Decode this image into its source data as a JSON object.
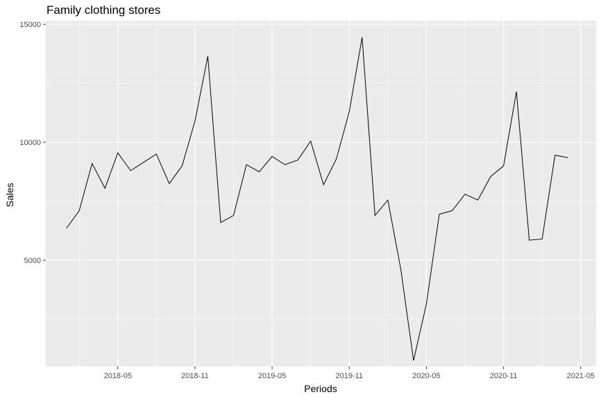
{
  "chart_data": {
    "type": "line",
    "title": "Family clothing stores",
    "xlabel": "Periods",
    "ylabel": "Sales",
    "x_ticks": [
      "2018-05",
      "2018-11",
      "2019-05",
      "2019-11",
      "2020-05",
      "2020-11",
      "2021-05"
    ],
    "y_ticks": [
      5000,
      10000,
      15000
    ],
    "ylim": [
      500,
      15150
    ],
    "grid": true,
    "series": [
      {
        "x": [
          "2018-01",
          "2018-02",
          "2018-03",
          "2018-04",
          "2018-05",
          "2018-06",
          "2018-07",
          "2018-08",
          "2018-09",
          "2018-10",
          "2018-11",
          "2018-12",
          "2019-01",
          "2019-02",
          "2019-03",
          "2019-04",
          "2019-05",
          "2019-06",
          "2019-07",
          "2019-08",
          "2019-09",
          "2019-10",
          "2019-11",
          "2019-12",
          "2020-01",
          "2020-02",
          "2020-03",
          "2020-04",
          "2020-05",
          "2020-06",
          "2020-07",
          "2020-08",
          "2020-09",
          "2020-10",
          "2020-11",
          "2020-12",
          "2021-01",
          "2021-02",
          "2021-03",
          "2021-04"
        ],
        "values": [
          6350,
          7100,
          9100,
          8050,
          9550,
          8800,
          9150,
          9500,
          8250,
          9000,
          10900,
          13650,
          6600,
          6900,
          9050,
          8750,
          9400,
          9050,
          9250,
          10050,
          8200,
          9300,
          11300,
          14450,
          6900,
          7550,
          4650,
          750,
          3150,
          6950,
          7100,
          7800,
          7550,
          8550,
          9000,
          12150,
          5850,
          5900,
          9450,
          9350
        ]
      }
    ]
  },
  "colors": {
    "panel": "#ebebeb",
    "grid": "#ffffff",
    "line": "#000000",
    "text": "#4d4d4d"
  }
}
